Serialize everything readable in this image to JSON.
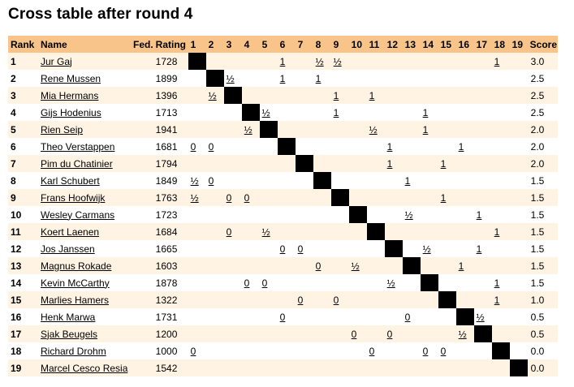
{
  "title": "Cross table after round 4",
  "headers": {
    "rank": "Rank",
    "name": "Name",
    "fed": "Fed.",
    "rating": "Rating",
    "score": "Score",
    "rounds": [
      "1",
      "2",
      "3",
      "4",
      "5",
      "6",
      "7",
      "8",
      "9",
      "10",
      "11",
      "12",
      "13",
      "14",
      "15",
      "16",
      "17",
      "18",
      "19"
    ]
  },
  "players": [
    {
      "rank": "1",
      "name": "Jur Gaj",
      "fed": "",
      "rating": "1728",
      "results": [
        "",
        "",
        "",
        "",
        "",
        "1",
        "",
        "½",
        "½",
        "",
        "",
        "",
        "",
        "",
        "",
        "",
        "",
        "1",
        ""
      ],
      "score": "3.0"
    },
    {
      "rank": "2",
      "name": "Rene Mussen",
      "fed": "",
      "rating": "1899",
      "results": [
        "",
        "",
        "½",
        "",
        "",
        "1",
        "",
        "1",
        "",
        "",
        "",
        "",
        "",
        "",
        "",
        "",
        "",
        "",
        ""
      ],
      "score": "2.5"
    },
    {
      "rank": "3",
      "name": "Mia Hermans",
      "fed": "",
      "rating": "1396",
      "results": [
        "",
        "½",
        "",
        "",
        "",
        "",
        "",
        "",
        "1",
        "",
        "1",
        "",
        "",
        "",
        "",
        "",
        "",
        "",
        ""
      ],
      "score": "2.5"
    },
    {
      "rank": "4",
      "name": "Gijs Hodenius",
      "fed": "",
      "rating": "1713",
      "results": [
        "",
        "",
        "",
        "",
        "½",
        "",
        "",
        "",
        "1",
        "",
        "",
        "",
        "",
        "1",
        "",
        "",
        "",
        "",
        ""
      ],
      "score": "2.5"
    },
    {
      "rank": "5",
      "name": "Rien Seip",
      "fed": "",
      "rating": "1941",
      "results": [
        "",
        "",
        "",
        "½",
        "",
        "",
        "",
        "",
        "",
        "",
        "½",
        "",
        "",
        "1",
        "",
        "",
        "",
        "",
        ""
      ],
      "score": "2.0"
    },
    {
      "rank": "6",
      "name": "Theo Verstappen",
      "fed": "",
      "rating": "1681",
      "results": [
        "0",
        "0",
        "",
        "",
        "",
        "",
        "",
        "",
        "",
        "",
        "",
        "1",
        "",
        "",
        "",
        "1",
        "",
        "",
        ""
      ],
      "score": "2.0"
    },
    {
      "rank": "7",
      "name": "Pim du Chatinier",
      "fed": "",
      "rating": "1794",
      "results": [
        "",
        "",
        "",
        "",
        "",
        "",
        "",
        "",
        "",
        "",
        "",
        "1",
        "",
        "",
        "1",
        "",
        "",
        "",
        ""
      ],
      "score": "2.0"
    },
    {
      "rank": "8",
      "name": "Karl Schubert",
      "fed": "",
      "rating": "1849",
      "results": [
        "½",
        "0",
        "",
        "",
        "",
        "",
        "",
        "",
        "",
        "",
        "",
        "",
        "1",
        "",
        "",
        "",
        "",
        "",
        ""
      ],
      "score": "1.5"
    },
    {
      "rank": "9",
      "name": "Frans Hoofwijk",
      "fed": "",
      "rating": "1763",
      "results": [
        "½",
        "",
        "0",
        "0",
        "",
        "",
        "",
        "",
        "",
        "",
        "",
        "",
        "",
        "",
        "1",
        "",
        "",
        "",
        ""
      ],
      "score": "1.5"
    },
    {
      "rank": "10",
      "name": "Wesley Carmans",
      "fed": "",
      "rating": "1723",
      "results": [
        "",
        "",
        "",
        "",
        "",
        "",
        "",
        "",
        "",
        "",
        "",
        "",
        "½",
        "",
        "",
        "",
        "1",
        "",
        ""
      ],
      "score": "1.5"
    },
    {
      "rank": "11",
      "name": "Koert Laenen",
      "fed": "",
      "rating": "1684",
      "results": [
        "",
        "",
        "0",
        "",
        "½",
        "",
        "",
        "",
        "",
        "",
        "",
        "",
        "",
        "",
        "",
        "",
        "",
        "1",
        ""
      ],
      "score": "1.5"
    },
    {
      "rank": "12",
      "name": "Jos Janssen",
      "fed": "",
      "rating": "1665",
      "results": [
        "",
        "",
        "",
        "",
        "",
        "0",
        "0",
        "",
        "",
        "",
        "",
        "",
        "",
        "½",
        "",
        "",
        "1",
        "",
        ""
      ],
      "score": "1.5"
    },
    {
      "rank": "13",
      "name": "Magnus Rokade",
      "fed": "",
      "rating": "1603",
      "results": [
        "",
        "",
        "",
        "",
        "",
        "",
        "",
        "0",
        "",
        "½",
        "",
        "",
        "",
        "",
        "",
        "1",
        "",
        "",
        ""
      ],
      "score": "1.5"
    },
    {
      "rank": "14",
      "name": "Kevin McCarthy",
      "fed": "",
      "rating": "1878",
      "results": [
        "",
        "",
        "",
        "0",
        "0",
        "",
        "",
        "",
        "",
        "",
        "",
        "½",
        "",
        "",
        "",
        "",
        "",
        "1",
        ""
      ],
      "score": "1.5"
    },
    {
      "rank": "15",
      "name": "Marlies Hamers",
      "fed": "",
      "rating": "1322",
      "results": [
        "",
        "",
        "",
        "",
        "",
        "",
        "0",
        "",
        "0",
        "",
        "",
        "",
        "",
        "",
        "",
        "",
        "",
        "1",
        ""
      ],
      "score": "1.0"
    },
    {
      "rank": "16",
      "name": "Henk Marwa",
      "fed": "",
      "rating": "1731",
      "results": [
        "",
        "",
        "",
        "",
        "",
        "0",
        "",
        "",
        "",
        "",
        "",
        "",
        "0",
        "",
        "",
        "",
        "½",
        "",
        ""
      ],
      "score": "0.5"
    },
    {
      "rank": "17",
      "name": "Sjak Beugels",
      "fed": "",
      "rating": "1200",
      "results": [
        "",
        "",
        "",
        "",
        "",
        "",
        "",
        "",
        "",
        "0",
        "",
        "0",
        "",
        "",
        "",
        "½",
        "",
        "",
        ""
      ],
      "score": "0.5"
    },
    {
      "rank": "18",
      "name": "Richard Drohm",
      "fed": "",
      "rating": "1000",
      "results": [
        "0",
        "",
        "",
        "",
        "",
        "",
        "",
        "",
        "",
        "",
        "0",
        "",
        "",
        "0",
        "0",
        "",
        "",
        "",
        ""
      ],
      "score": "0.0"
    },
    {
      "rank": "19",
      "name": "Marcel Cesco Resia",
      "fed": "",
      "rating": "1542",
      "results": [
        "",
        "",
        "",
        "",
        "",
        "",
        "",
        "",
        "",
        "",
        "",
        "",
        "",
        "",
        "",
        "",
        "",
        "",
        ""
      ],
      "score": "0.0"
    }
  ]
}
